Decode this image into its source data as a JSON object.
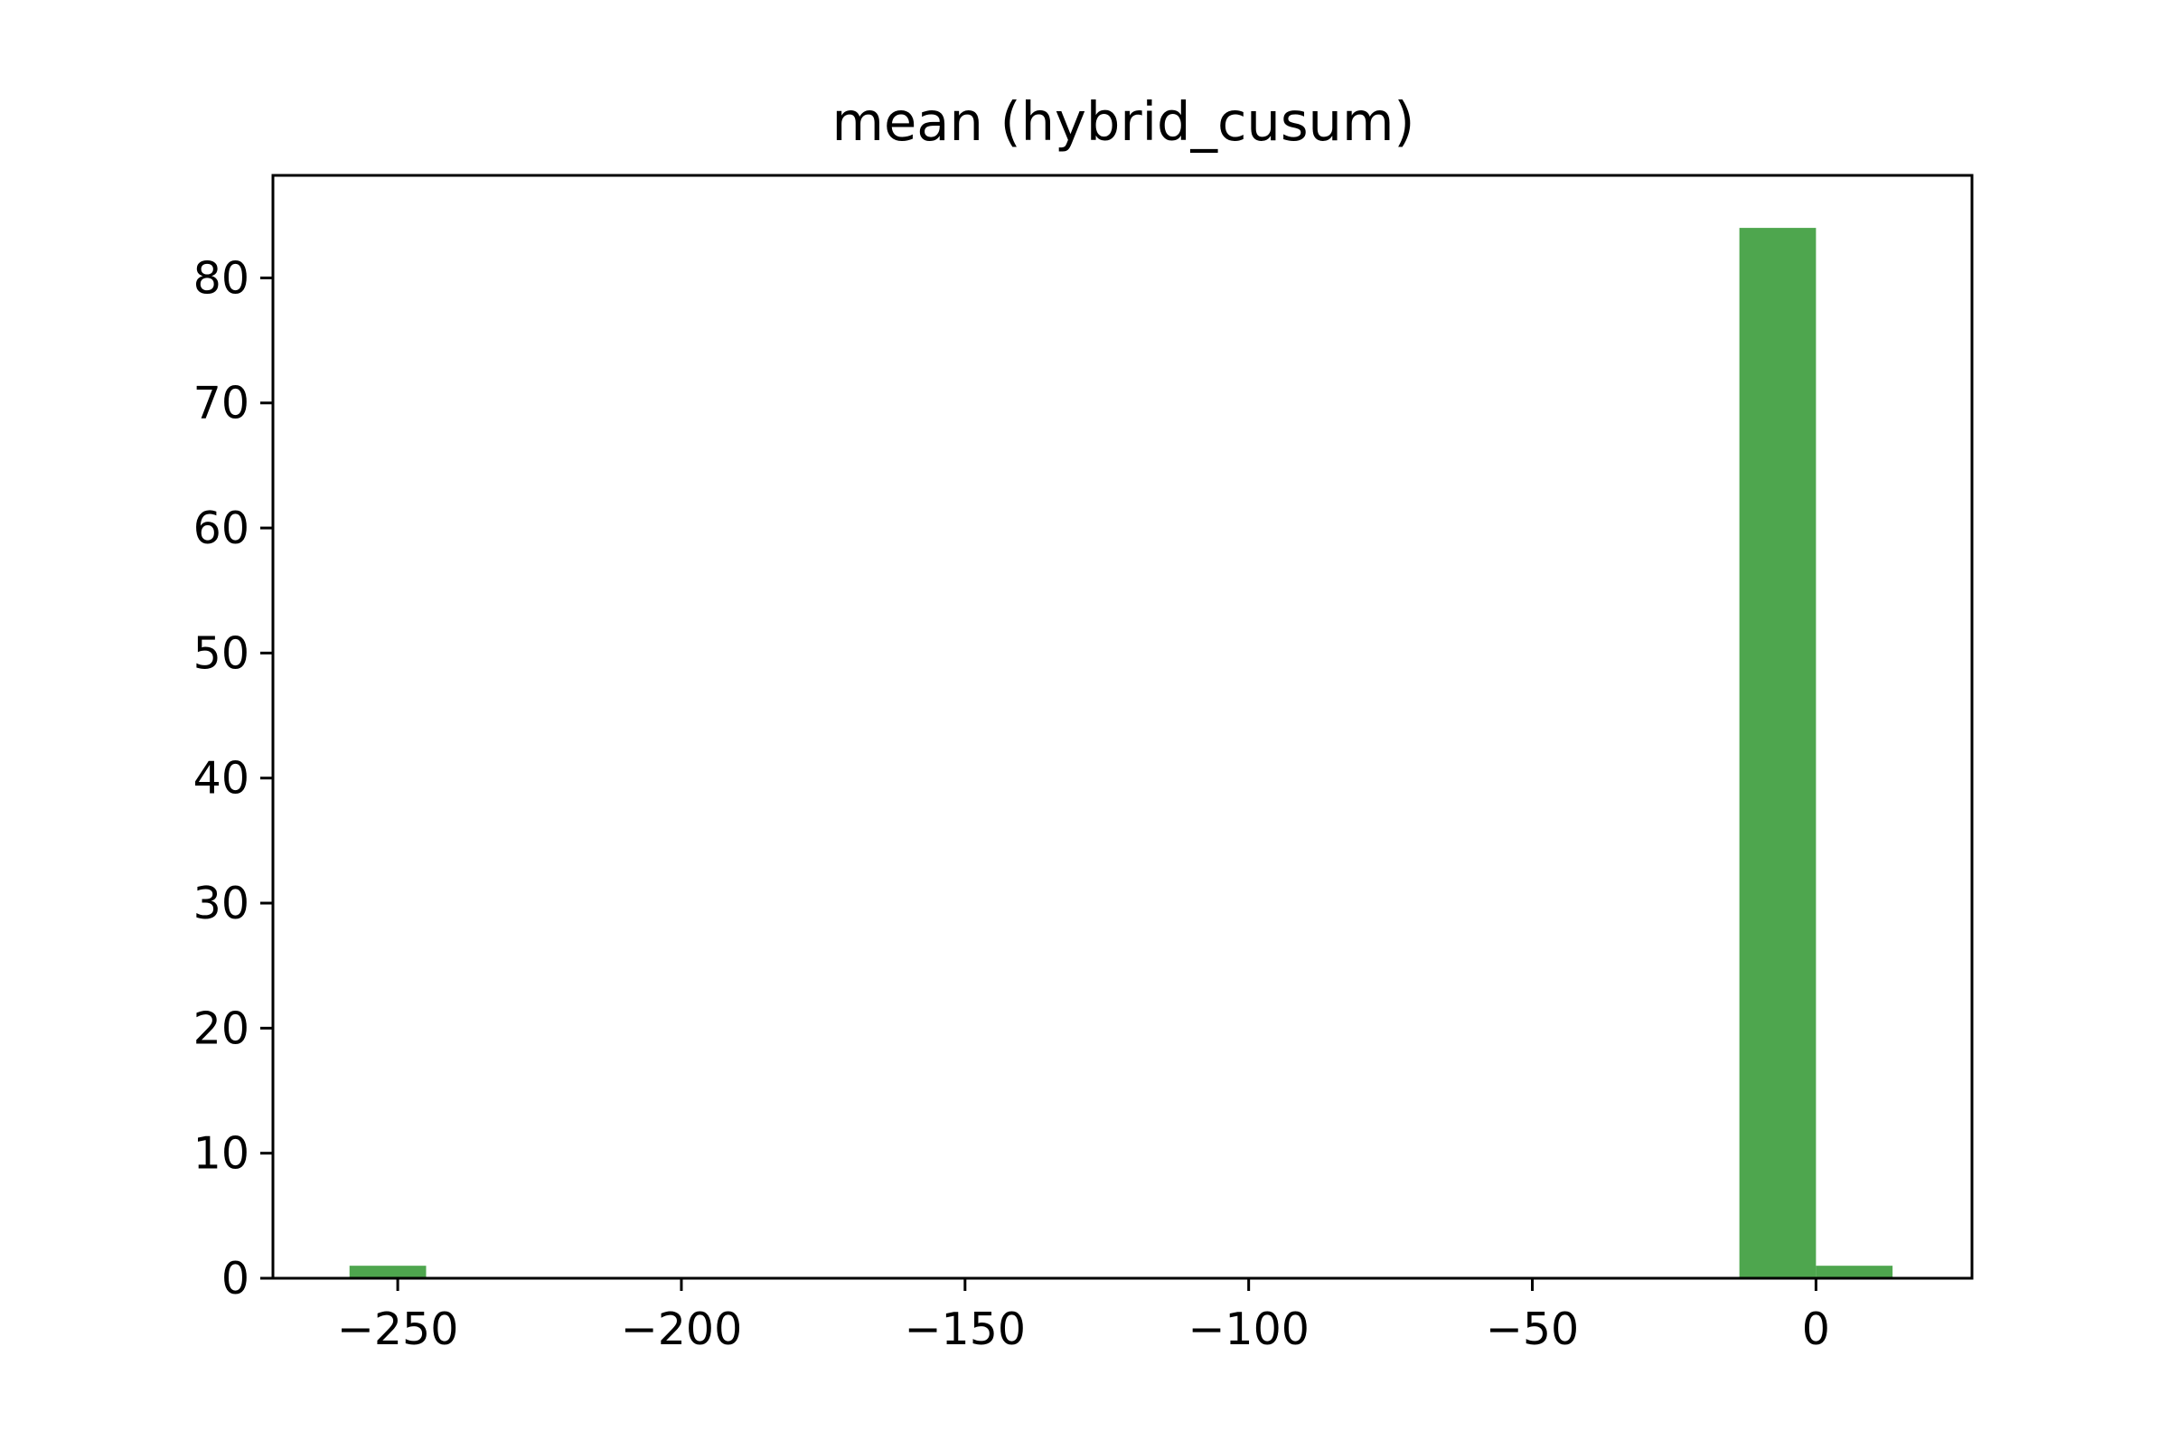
{
  "chart_data": {
    "type": "bar",
    "title": "mean (hybrid_cusum)",
    "xlabel": "",
    "ylabel": "",
    "bars": [
      {
        "x0": -258.5,
        "x1": -245.0,
        "count": 1
      },
      {
        "x0": -245.0,
        "x1": -231.5,
        "count": 0
      },
      {
        "x0": -231.5,
        "x1": -218.0,
        "count": 0
      },
      {
        "x0": -218.0,
        "x1": -204.5,
        "count": 0
      },
      {
        "x0": -204.5,
        "x1": -191.0,
        "count": 0
      },
      {
        "x0": -191.0,
        "x1": -177.5,
        "count": 0
      },
      {
        "x0": -177.5,
        "x1": -164.0,
        "count": 0
      },
      {
        "x0": -164.0,
        "x1": -150.5,
        "count": 0
      },
      {
        "x0": -150.5,
        "x1": -137.0,
        "count": 0
      },
      {
        "x0": -137.0,
        "x1": -123.5,
        "count": 0
      },
      {
        "x0": -123.5,
        "x1": -110.0,
        "count": 0
      },
      {
        "x0": -110.0,
        "x1": -96.5,
        "count": 0
      },
      {
        "x0": -96.5,
        "x1": -83.0,
        "count": 0
      },
      {
        "x0": -83.0,
        "x1": -69.5,
        "count": 0
      },
      {
        "x0": -69.5,
        "x1": -56.0,
        "count": 0
      },
      {
        "x0": -56.0,
        "x1": -42.5,
        "count": 0
      },
      {
        "x0": -42.5,
        "x1": -29.0,
        "count": 0
      },
      {
        "x0": -29.0,
        "x1": -15.5,
        "count": 0
      },
      {
        "x0": -13.5,
        "x1": 0.0,
        "count": 84
      },
      {
        "x0": 0.0,
        "x1": 13.5,
        "count": 1
      }
    ],
    "xlim": [
      -272,
      27.5
    ],
    "ylim": [
      0,
      88.2
    ],
    "xticks": [
      -250,
      -200,
      -150,
      -100,
      -50,
      0
    ],
    "xtick_labels": [
      "−250",
      "−200",
      "−150",
      "−100",
      "−50",
      "0"
    ],
    "yticks": [
      0,
      10,
      20,
      30,
      40,
      50,
      60,
      70,
      80
    ],
    "ytick_labels": [
      "0",
      "10",
      "20",
      "30",
      "40",
      "50",
      "60",
      "70",
      "80"
    ],
    "bar_color": "#4ea64e",
    "grid": false,
    "legend": "none"
  }
}
